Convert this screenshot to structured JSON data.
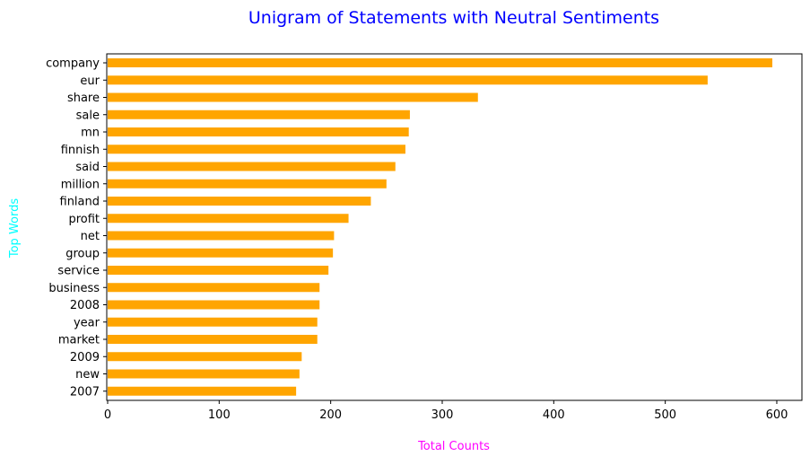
{
  "chart_data": {
    "type": "bar",
    "orientation": "horizontal",
    "title": "Unigram of Statements with Neutral Sentiments",
    "xlabel": "Total Counts",
    "ylabel": "Top Words",
    "categories": [
      "company",
      "eur",
      "share",
      "sale",
      "mn",
      "finnish",
      "said",
      "million",
      "finland",
      "profit",
      "net",
      "group",
      "service",
      "business",
      "2008",
      "year",
      "market",
      "2009",
      "new",
      "2007"
    ],
    "values": [
      596,
      538,
      332,
      271,
      270,
      267,
      258,
      250,
      236,
      216,
      203,
      202,
      198,
      190,
      190,
      188,
      188,
      174,
      172,
      169
    ],
    "xlim": [
      0,
      625
    ],
    "xticks": [
      0,
      100,
      200,
      300,
      400,
      500,
      600
    ],
    "grid": false,
    "colors": {
      "bar": "#ffa500",
      "title": "#0000ff",
      "xlabel": "#ff00ff",
      "ylabel": "#00ffff",
      "axis": "#000000"
    }
  }
}
